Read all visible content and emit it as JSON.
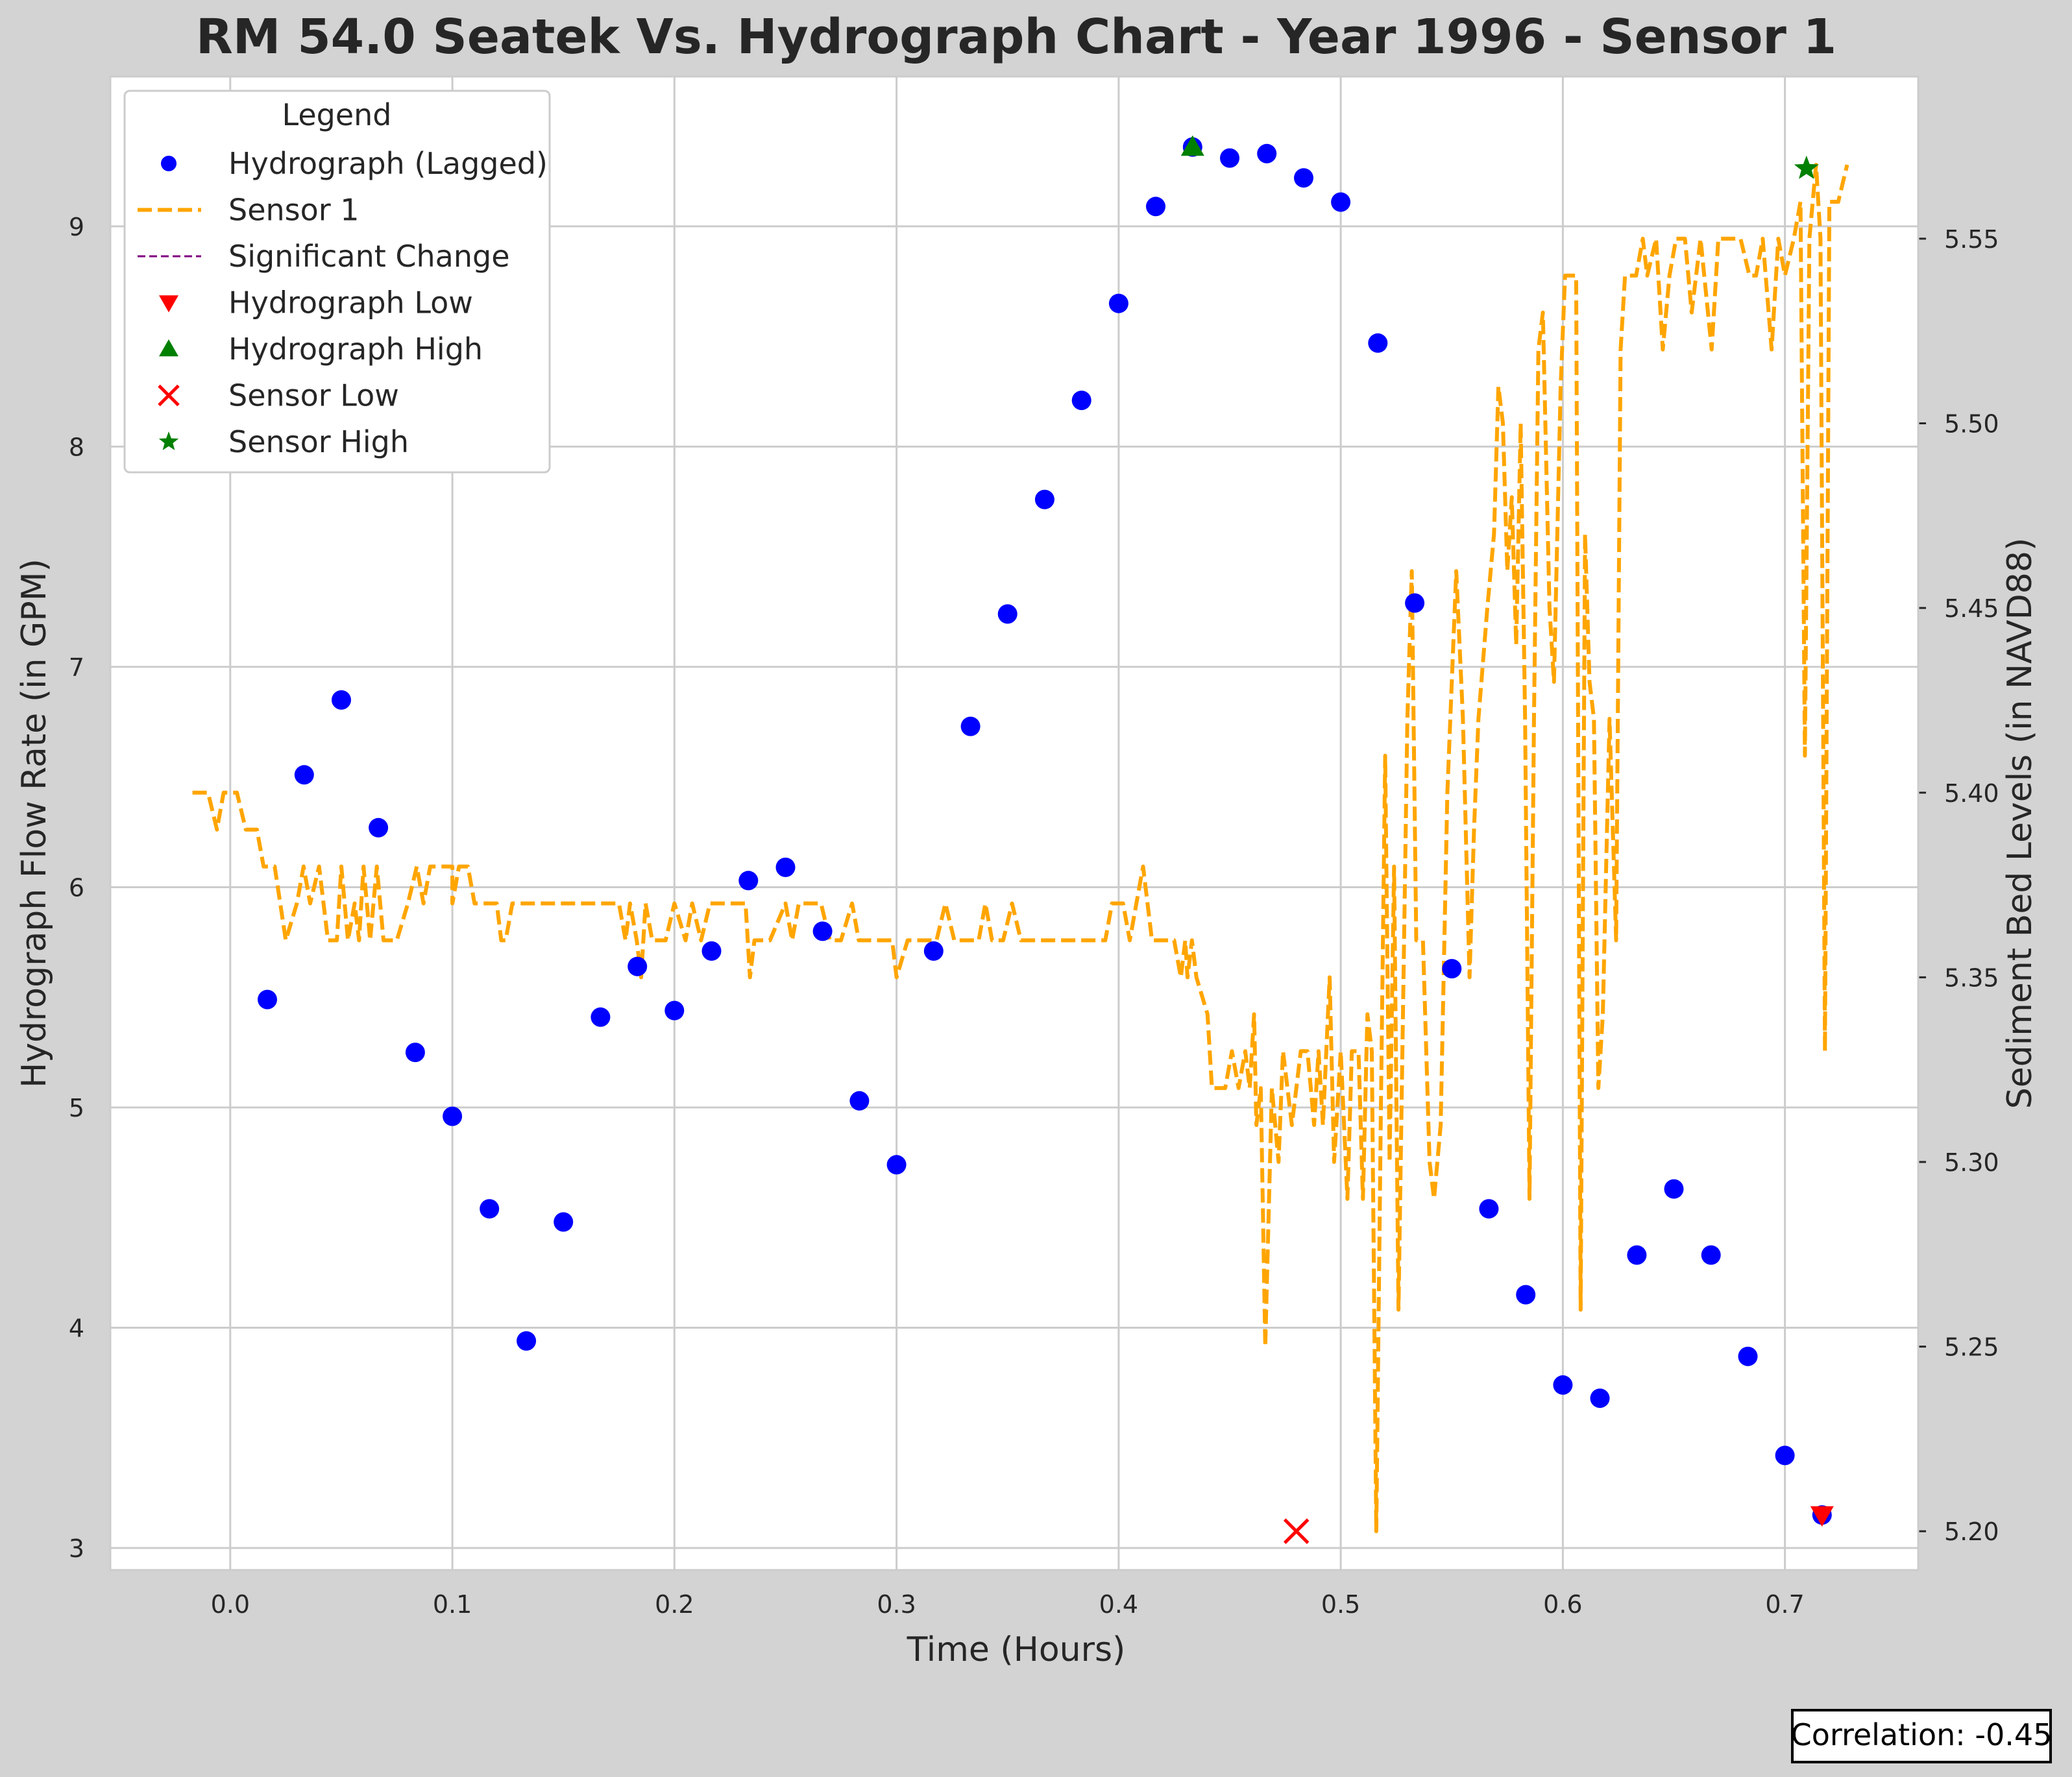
{
  "chart_data": {
    "type": "line",
    "title": "RM 54.0 Seatek Vs. Hydrograph Chart - Year 1996 - Sensor 1",
    "xlabel": "Time (Hours)",
    "ylabel": "Hydrograph Flow Rate (in GPM)",
    "y2label": "Sediment Bed Levels (in NAVD88)",
    "xlim": [
      -0.054,
      0.76
    ],
    "ylim": [
      2.9,
      9.68
    ],
    "y2lim": [
      5.1895,
      5.5939
    ],
    "xticks": [
      "0.0",
      "0.1",
      "0.2",
      "0.3",
      "0.4",
      "0.5",
      "0.6",
      "0.7"
    ],
    "yticks": [
      "3",
      "4",
      "5",
      "6",
      "7",
      "8",
      "9"
    ],
    "y2ticks": [
      "5.20",
      "5.25",
      "5.30",
      "5.35",
      "5.40",
      "5.45",
      "5.50",
      "5.55"
    ],
    "grid": true,
    "legend": {
      "title": "Legend",
      "placement": "top-left",
      "entries": [
        {
          "label": "Hydrograph (Lagged)",
          "marker": "circle",
          "color": "#0000ff"
        },
        {
          "label": "Sensor 1",
          "marker": "dashed-line",
          "color": "#ffa500"
        },
        {
          "label": "Significant Change",
          "marker": "thin-dashed-line",
          "color": "#800080"
        },
        {
          "label": "Hydrograph Low",
          "marker": "triangle-down",
          "color": "#ff0000"
        },
        {
          "label": "Hydrograph High",
          "marker": "triangle-up",
          "color": "#008000"
        },
        {
          "label": "Sensor Low",
          "marker": "x",
          "color": "#ff0000"
        },
        {
          "label": "Sensor High",
          "marker": "star",
          "color": "#008000"
        }
      ]
    },
    "series": [
      {
        "name": "Hydrograph (Lagged)",
        "axis": "left",
        "color": "#0000ff",
        "points": [
          [
            0.0167,
            5.49
          ],
          [
            0.0333,
            6.51
          ],
          [
            0.05,
            6.85
          ],
          [
            0.0667,
            6.27
          ],
          [
            0.0833,
            5.25
          ],
          [
            0.1,
            4.96
          ],
          [
            0.1167,
            4.54
          ],
          [
            0.1333,
            3.94
          ],
          [
            0.15,
            4.48
          ],
          [
            0.1667,
            5.41
          ],
          [
            0.1833,
            5.64
          ],
          [
            0.2,
            5.44
          ],
          [
            0.2167,
            5.71
          ],
          [
            0.2333,
            6.03
          ],
          [
            0.25,
            6.09
          ],
          [
            0.2667,
            5.8
          ],
          [
            0.2833,
            5.03
          ],
          [
            0.3,
            4.74
          ],
          [
            0.3167,
            5.71
          ],
          [
            0.3333,
            6.73
          ],
          [
            0.35,
            7.24
          ],
          [
            0.3667,
            7.76
          ],
          [
            0.3833,
            8.21
          ],
          [
            0.4,
            8.65
          ],
          [
            0.4167,
            9.09
          ],
          [
            0.4333,
            9.36
          ],
          [
            0.45,
            9.31
          ],
          [
            0.4667,
            9.33
          ],
          [
            0.4833,
            9.22
          ],
          [
            0.5,
            9.11
          ],
          [
            0.5167,
            8.47
          ],
          [
            0.5333,
            7.29
          ],
          [
            0.55,
            5.63
          ],
          [
            0.5667,
            4.54
          ],
          [
            0.5833,
            4.15
          ],
          [
            0.6,
            3.74
          ],
          [
            0.6167,
            3.68
          ],
          [
            0.6333,
            4.33
          ],
          [
            0.65,
            4.63
          ],
          [
            0.6667,
            4.33
          ],
          [
            0.6833,
            3.87
          ],
          [
            0.7,
            3.42
          ],
          [
            0.7167,
            3.15
          ]
        ]
      },
      {
        "name": "Sensor 1",
        "axis": "right",
        "color": "#ffa500",
        "points": [
          [
            -0.017,
            5.4
          ],
          [
            -0.01,
            5.4
          ],
          [
            -0.006,
            5.39
          ],
          [
            -0.003,
            5.4
          ],
          [
            0.003,
            5.4
          ],
          [
            0.007,
            5.39
          ],
          [
            0.012,
            5.39
          ],
          [
            0.015,
            5.38
          ],
          [
            0.02,
            5.38
          ],
          [
            0.025,
            5.36
          ],
          [
            0.03,
            5.37
          ],
          [
            0.033,
            5.38
          ],
          [
            0.036,
            5.37
          ],
          [
            0.04,
            5.38
          ],
          [
            0.044,
            5.36
          ],
          [
            0.048,
            5.36
          ],
          [
            0.05,
            5.38
          ],
          [
            0.053,
            5.36
          ],
          [
            0.056,
            5.37
          ],
          [
            0.058,
            5.36
          ],
          [
            0.06,
            5.38
          ],
          [
            0.063,
            5.36
          ],
          [
            0.066,
            5.38
          ],
          [
            0.069,
            5.36
          ],
          [
            0.075,
            5.36
          ],
          [
            0.08,
            5.37
          ],
          [
            0.084,
            5.38
          ],
          [
            0.087,
            5.37
          ],
          [
            0.09,
            5.38
          ],
          [
            0.1,
            5.38
          ],
          [
            0.1,
            5.37
          ],
          [
            0.103,
            5.38
          ],
          [
            0.107,
            5.38
          ],
          [
            0.11,
            5.37
          ],
          [
            0.12,
            5.37
          ],
          [
            0.122,
            5.36
          ],
          [
            0.124,
            5.36
          ],
          [
            0.127,
            5.37
          ],
          [
            0.175,
            5.37
          ],
          [
            0.178,
            5.36
          ],
          [
            0.18,
            5.37
          ],
          [
            0.183,
            5.36
          ],
          [
            0.185,
            5.35
          ],
          [
            0.187,
            5.37
          ],
          [
            0.19,
            5.36
          ],
          [
            0.196,
            5.36
          ],
          [
            0.2,
            5.37
          ],
          [
            0.205,
            5.36
          ],
          [
            0.208,
            5.37
          ],
          [
            0.212,
            5.36
          ],
          [
            0.216,
            5.37
          ],
          [
            0.232,
            5.37
          ],
          [
            0.234,
            5.35
          ],
          [
            0.236,
            5.36
          ],
          [
            0.243,
            5.36
          ],
          [
            0.25,
            5.37
          ],
          [
            0.253,
            5.36
          ],
          [
            0.256,
            5.37
          ],
          [
            0.266,
            5.37
          ],
          [
            0.27,
            5.36
          ],
          [
            0.275,
            5.36
          ],
          [
            0.28,
            5.37
          ],
          [
            0.283,
            5.36
          ],
          [
            0.298,
            5.36
          ],
          [
            0.3,
            5.35
          ],
          [
            0.305,
            5.36
          ],
          [
            0.318,
            5.36
          ],
          [
            0.322,
            5.37
          ],
          [
            0.326,
            5.36
          ],
          [
            0.337,
            5.36
          ],
          [
            0.34,
            5.37
          ],
          [
            0.343,
            5.36
          ],
          [
            0.348,
            5.36
          ],
          [
            0.352,
            5.37
          ],
          [
            0.356,
            5.36
          ],
          [
            0.36,
            5.36
          ],
          [
            0.38,
            5.36
          ],
          [
            0.394,
            5.36
          ],
          [
            0.397,
            5.37
          ],
          [
            0.402,
            5.37
          ],
          [
            0.405,
            5.36
          ],
          [
            0.408,
            5.37
          ],
          [
            0.411,
            5.38
          ],
          [
            0.415,
            5.36
          ],
          [
            0.42,
            5.36
          ],
          [
            0.425,
            5.36
          ],
          [
            0.428,
            5.35
          ],
          [
            0.43,
            5.36
          ],
          [
            0.431,
            5.35
          ],
          [
            0.433,
            5.36
          ],
          [
            0.435,
            5.35
          ],
          [
            0.44,
            5.34
          ],
          [
            0.442,
            5.32
          ],
          [
            0.445,
            5.32
          ],
          [
            0.448,
            5.32
          ],
          [
            0.451,
            5.33
          ],
          [
            0.454,
            5.32
          ],
          [
            0.457,
            5.33
          ],
          [
            0.459,
            5.32
          ],
          [
            0.461,
            5.34
          ],
          [
            0.462,
            5.31
          ],
          [
            0.464,
            5.32
          ],
          [
            0.466,
            5.25
          ],
          [
            0.469,
            5.32
          ],
          [
            0.472,
            5.3
          ],
          [
            0.474,
            5.33
          ],
          [
            0.476,
            5.32
          ],
          [
            0.478,
            5.31
          ],
          [
            0.48,
            5.32
          ],
          [
            0.482,
            5.33
          ],
          [
            0.485,
            5.33
          ],
          [
            0.488,
            5.31
          ],
          [
            0.49,
            5.33
          ],
          [
            0.492,
            5.31
          ],
          [
            0.495,
            5.35
          ],
          [
            0.497,
            5.3
          ],
          [
            0.5,
            5.33
          ],
          [
            0.503,
            5.29
          ],
          [
            0.505,
            5.33
          ],
          [
            0.508,
            5.33
          ],
          [
            0.51,
            5.29
          ],
          [
            0.512,
            5.34
          ],
          [
            0.514,
            5.33
          ],
          [
            0.516,
            5.2
          ],
          [
            0.518,
            5.31
          ],
          [
            0.52,
            5.41
          ],
          [
            0.522,
            5.3
          ],
          [
            0.524,
            5.38
          ],
          [
            0.526,
            5.26
          ],
          [
            0.528,
            5.34
          ],
          [
            0.53,
            5.42
          ],
          [
            0.532,
            5.46
          ],
          [
            0.534,
            5.36
          ],
          [
            0.537,
            5.36
          ],
          [
            0.54,
            5.3
          ],
          [
            0.542,
            5.29
          ],
          [
            0.545,
            5.31
          ],
          [
            0.548,
            5.4
          ],
          [
            0.552,
            5.46
          ],
          [
            0.555,
            5.42
          ],
          [
            0.558,
            5.35
          ],
          [
            0.56,
            5.39
          ],
          [
            0.562,
            5.42
          ],
          [
            0.566,
            5.45
          ],
          [
            0.569,
            5.47
          ],
          [
            0.571,
            5.51
          ],
          [
            0.573,
            5.5
          ],
          [
            0.575,
            5.46
          ],
          [
            0.577,
            5.48
          ],
          [
            0.579,
            5.44
          ],
          [
            0.581,
            5.5
          ],
          [
            0.583,
            5.42
          ],
          [
            0.585,
            5.29
          ],
          [
            0.587,
            5.42
          ],
          [
            0.589,
            5.52
          ],
          [
            0.591,
            5.53
          ],
          [
            0.594,
            5.45
          ],
          [
            0.596,
            5.43
          ],
          [
            0.599,
            5.51
          ],
          [
            0.601,
            5.54
          ],
          [
            0.606,
            5.54
          ],
          [
            0.608,
            5.26
          ],
          [
            0.61,
            5.47
          ],
          [
            0.612,
            5.43
          ],
          [
            0.614,
            5.42
          ],
          [
            0.616,
            5.32
          ],
          [
            0.618,
            5.34
          ],
          [
            0.621,
            5.42
          ],
          [
            0.624,
            5.36
          ],
          [
            0.626,
            5.52
          ],
          [
            0.628,
            5.54
          ],
          [
            0.633,
            5.54
          ],
          [
            0.636,
            5.55
          ],
          [
            0.638,
            5.54
          ],
          [
            0.642,
            5.55
          ],
          [
            0.645,
            5.52
          ],
          [
            0.648,
            5.54
          ],
          [
            0.651,
            5.55
          ],
          [
            0.655,
            5.55
          ],
          [
            0.658,
            5.53
          ],
          [
            0.662,
            5.55
          ],
          [
            0.667,
            5.52
          ],
          [
            0.67,
            5.55
          ],
          [
            0.68,
            5.55
          ],
          [
            0.684,
            5.54
          ],
          [
            0.687,
            5.54
          ],
          [
            0.69,
            5.55
          ],
          [
            0.694,
            5.52
          ],
          [
            0.697,
            5.55
          ],
          [
            0.7,
            5.54
          ],
          [
            0.704,
            5.55
          ],
          [
            0.707,
            5.56
          ],
          [
            0.709,
            5.41
          ],
          [
            0.711,
            5.55
          ],
          [
            0.714,
            5.57
          ],
          [
            0.716,
            5.55
          ],
          [
            0.718,
            5.33
          ],
          [
            0.72,
            5.56
          ],
          [
            0.724,
            5.56
          ],
          [
            0.728,
            5.57
          ]
        ]
      }
    ],
    "markers": [
      {
        "name": "Hydrograph Low",
        "shape": "triangle-down",
        "color": "#ff0000",
        "axis": "left",
        "x": 0.7167,
        "y": 3.15
      },
      {
        "name": "Hydrograph High",
        "shape": "triangle-up",
        "color": "#008000",
        "axis": "left",
        "x": 0.4333,
        "y": 9.36
      },
      {
        "name": "Sensor Low",
        "shape": "x",
        "color": "#ff0000",
        "axis": "right",
        "x": 0.48,
        "y": 5.2
      },
      {
        "name": "Sensor High",
        "shape": "star",
        "color": "#008000",
        "axis": "right",
        "x": 0.7097,
        "y": 5.569
      }
    ],
    "annotation": "Correlation: -0.45"
  }
}
